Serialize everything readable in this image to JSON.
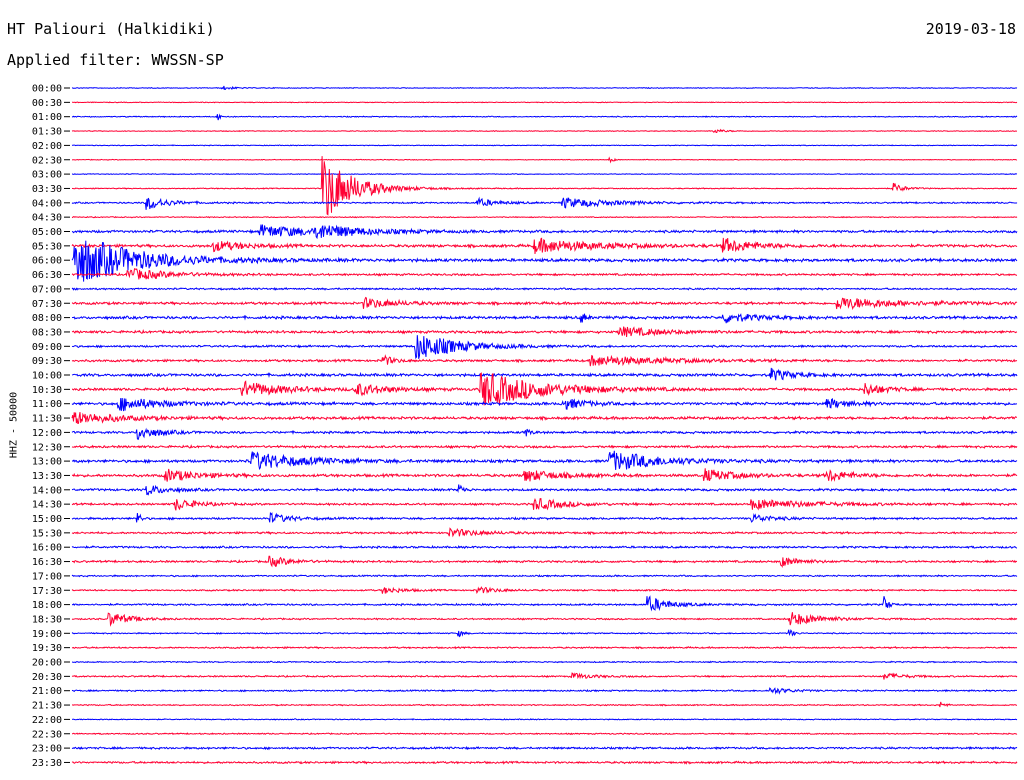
{
  "header": {
    "station": "HT Paliouri (Halkidiki)",
    "date": "2019-03-18",
    "filter": "Applied filter: WWSSN-SP"
  },
  "chart_data": {
    "type": "line",
    "title": "HT Paliouri (Halkidiki)",
    "subtitle": "Applied filter: WWSSN-SP",
    "date": "2019-03-18",
    "ylabel": "HHZ - 50000",
    "xlabel": "",
    "grid": false,
    "colors": {
      "even_hour": "#0000ff",
      "half_hour": "#ff0033"
    },
    "rows": [
      "00:00",
      "00:30",
      "01:00",
      "01:30",
      "02:00",
      "02:30",
      "03:00",
      "03:30",
      "04:00",
      "04:30",
      "05:00",
      "05:30",
      "06:00",
      "06:30",
      "07:00",
      "07:30",
      "08:00",
      "08:30",
      "09:00",
      "09:30",
      "10:00",
      "10:30",
      "11:00",
      "11:30",
      "12:00",
      "12:30",
      "13:00",
      "13:30",
      "14:00",
      "14:30",
      "15:00",
      "15:30",
      "16:00",
      "16:30",
      "17:00",
      "17:30",
      "18:00",
      "18:30",
      "19:00",
      "19:30",
      "20:00",
      "20:30",
      "21:00",
      "21:30",
      "22:00",
      "22:30",
      "23:00",
      "23:30"
    ],
    "noise": [
      0.3,
      0.3,
      0.4,
      0.3,
      0.3,
      0.3,
      0.3,
      0.4,
      0.6,
      0.4,
      1.0,
      1.1,
      1.2,
      0.8,
      0.7,
      1.0,
      1.1,
      1.0,
      0.8,
      0.9,
      1.1,
      1.0,
      1.1,
      1.1,
      0.9,
      0.9,
      1.1,
      1.1,
      0.9,
      0.8,
      0.8,
      0.8,
      0.8,
      0.8,
      0.6,
      0.6,
      0.7,
      0.6,
      0.5,
      0.6,
      0.5,
      0.6,
      0.6,
      0.5,
      0.4,
      0.5,
      0.8,
      0.8
    ],
    "events": [
      {
        "row": 0,
        "t": 0.16,
        "amp": 2,
        "dur": 0.01
      },
      {
        "row": 2,
        "t": 0.155,
        "amp": 3,
        "dur": 0.004
      },
      {
        "row": 3,
        "t": 0.68,
        "amp": 2,
        "dur": 0.01
      },
      {
        "row": 5,
        "t": 0.57,
        "amp": 3,
        "dur": 0.003
      },
      {
        "row": 7,
        "t": 0.266,
        "amp": 34,
        "dur": 0.03
      },
      {
        "row": 7,
        "t": 0.87,
        "amp": 5,
        "dur": 0.01
      },
      {
        "row": 8,
        "t": 0.08,
        "amp": 7,
        "dur": 0.02
      },
      {
        "row": 8,
        "t": 0.43,
        "amp": 4,
        "dur": 0.02
      },
      {
        "row": 8,
        "t": 0.52,
        "amp": 5,
        "dur": 0.05
      },
      {
        "row": 10,
        "t": 0.2,
        "amp": 6,
        "dur": 0.06
      },
      {
        "row": 10,
        "t": 0.26,
        "amp": 6,
        "dur": 0.04
      },
      {
        "row": 11,
        "t": 0.15,
        "amp": 5,
        "dur": 0.03
      },
      {
        "row": 11,
        "t": 0.49,
        "amp": 7,
        "dur": 0.06
      },
      {
        "row": 11,
        "t": 0.69,
        "amp": 7,
        "dur": 0.03
      },
      {
        "row": 12,
        "t": 0.0,
        "amp": 28,
        "dur": 0.06
      },
      {
        "row": 13,
        "t": 0.06,
        "amp": 6,
        "dur": 0.04
      },
      {
        "row": 15,
        "t": 0.31,
        "amp": 5,
        "dur": 0.03
      },
      {
        "row": 15,
        "t": 0.81,
        "amp": 6,
        "dur": 0.06
      },
      {
        "row": 16,
        "t": 0.54,
        "amp": 5,
        "dur": 0.004
      },
      {
        "row": 16,
        "t": 0.69,
        "amp": 5,
        "dur": 0.03
      },
      {
        "row": 17,
        "t": 0.58,
        "amp": 5,
        "dur": 0.04
      },
      {
        "row": 18,
        "t": 0.365,
        "amp": 14,
        "dur": 0.04
      },
      {
        "row": 19,
        "t": 0.33,
        "amp": 5,
        "dur": 0.01
      },
      {
        "row": 19,
        "t": 0.55,
        "amp": 5,
        "dur": 0.07
      },
      {
        "row": 20,
        "t": 0.74,
        "amp": 6,
        "dur": 0.02
      },
      {
        "row": 21,
        "t": 0.18,
        "amp": 8,
        "dur": 0.04
      },
      {
        "row": 21,
        "t": 0.3,
        "amp": 6,
        "dur": 0.03
      },
      {
        "row": 21,
        "t": 0.433,
        "amp": 18,
        "dur": 0.06
      },
      {
        "row": 21,
        "t": 0.84,
        "amp": 6,
        "dur": 0.02
      },
      {
        "row": 22,
        "t": 0.05,
        "amp": 7,
        "dur": 0.04
      },
      {
        "row": 22,
        "t": 0.52,
        "amp": 6,
        "dur": 0.02
      },
      {
        "row": 22,
        "t": 0.8,
        "amp": 5,
        "dur": 0.02
      },
      {
        "row": 23,
        "t": 0.0,
        "amp": 7,
        "dur": 0.04
      },
      {
        "row": 24,
        "t": 0.07,
        "amp": 7,
        "dur": 0.02
      },
      {
        "row": 24,
        "t": 0.48,
        "amp": 4,
        "dur": 0.005
      },
      {
        "row": 26,
        "t": 0.19,
        "amp": 9,
        "dur": 0.05
      },
      {
        "row": 26,
        "t": 0.57,
        "amp": 10,
        "dur": 0.05
      },
      {
        "row": 27,
        "t": 0.1,
        "amp": 6,
        "dur": 0.03
      },
      {
        "row": 27,
        "t": 0.48,
        "amp": 6,
        "dur": 0.03
      },
      {
        "row": 27,
        "t": 0.67,
        "amp": 6,
        "dur": 0.03
      },
      {
        "row": 27,
        "t": 0.8,
        "amp": 6,
        "dur": 0.02
      },
      {
        "row": 28,
        "t": 0.08,
        "amp": 5,
        "dur": 0.02
      },
      {
        "row": 28,
        "t": 0.41,
        "amp": 6,
        "dur": 0.004
      },
      {
        "row": 29,
        "t": 0.11,
        "amp": 6,
        "dur": 0.02
      },
      {
        "row": 29,
        "t": 0.49,
        "amp": 6,
        "dur": 0.03
      },
      {
        "row": 29,
        "t": 0.72,
        "amp": 5,
        "dur": 0.06
      },
      {
        "row": 30,
        "t": 0.07,
        "amp": 7,
        "dur": 0.003
      },
      {
        "row": 30,
        "t": 0.21,
        "amp": 5,
        "dur": 0.02
      },
      {
        "row": 30,
        "t": 0.72,
        "amp": 4,
        "dur": 0.02
      },
      {
        "row": 31,
        "t": 0.4,
        "amp": 4,
        "dur": 0.03
      },
      {
        "row": 33,
        "t": 0.21,
        "amp": 5,
        "dur": 0.02
      },
      {
        "row": 33,
        "t": 0.75,
        "amp": 5,
        "dur": 0.02
      },
      {
        "row": 35,
        "t": 0.33,
        "amp": 3,
        "dur": 0.02
      },
      {
        "row": 35,
        "t": 0.43,
        "amp": 3,
        "dur": 0.02
      },
      {
        "row": 36,
        "t": 0.61,
        "amp": 8,
        "dur": 0.02
      },
      {
        "row": 36,
        "t": 0.86,
        "amp": 8,
        "dur": 0.004
      },
      {
        "row": 37,
        "t": 0.04,
        "amp": 7,
        "dur": 0.02
      },
      {
        "row": 37,
        "t": 0.76,
        "amp": 7,
        "dur": 0.03
      },
      {
        "row": 38,
        "t": 0.41,
        "amp": 3,
        "dur": 0.004
      },
      {
        "row": 38,
        "t": 0.76,
        "amp": 4,
        "dur": 0.004
      },
      {
        "row": 41,
        "t": 0.53,
        "amp": 3,
        "dur": 0.02
      },
      {
        "row": 41,
        "t": 0.86,
        "amp": 3,
        "dur": 0.02
      },
      {
        "row": 42,
        "t": 0.74,
        "amp": 3,
        "dur": 0.02
      },
      {
        "row": 43,
        "t": 0.92,
        "amp": 3,
        "dur": 0.004
      }
    ]
  }
}
